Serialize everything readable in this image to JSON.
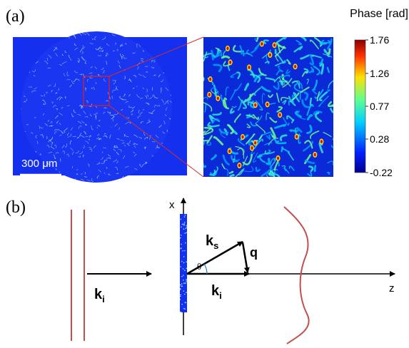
{
  "panel_a": {
    "label": "(a)",
    "scale_bar": "300 μm",
    "colorbar": {
      "title": "Phase [rad]",
      "lim": [
        -0.22,
        1.76
      ],
      "ticks": [
        1.76,
        1.26,
        0.77,
        0.28,
        -0.22
      ]
    }
  },
  "panel_b": {
    "label": "(b)",
    "x_axis": "x",
    "z_axis": "z",
    "incident": {
      "main": "k",
      "sub": "i"
    },
    "transmitted": {
      "main": "k",
      "sub": "i"
    },
    "scattered": {
      "main": "k",
      "sub": "s"
    },
    "momentum": "q",
    "angle": "θ"
  }
}
